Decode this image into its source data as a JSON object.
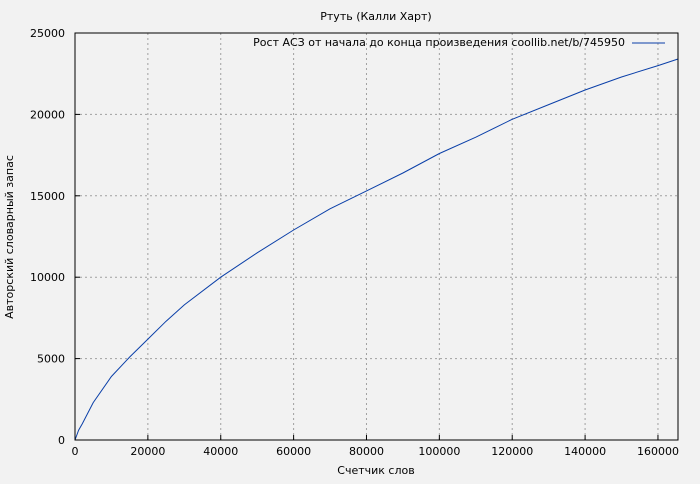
{
  "chart_data": {
    "type": "line",
    "title": "Ртуть (Калли Харт)",
    "xlabel": "Счетчик слов",
    "ylabel": "Авторский словарный запас",
    "xlim": [
      0,
      165500
    ],
    "ylim": [
      0,
      25000
    ],
    "xticks": [
      0,
      20000,
      40000,
      60000,
      80000,
      100000,
      120000,
      140000,
      160000
    ],
    "yticks": [
      0,
      5000,
      10000,
      15000,
      20000,
      25000
    ],
    "grid": true,
    "legend_placement": "top-right",
    "series": [
      {
        "name": "Рост АСЗ от начала до конца произведения coollib.net/b/745950",
        "color": "#0a3fa8",
        "x": [
          0,
          1000,
          2000,
          5000,
          10000,
          15000,
          20000,
          25000,
          30000,
          40000,
          50000,
          60000,
          70000,
          80000,
          90000,
          100000,
          110000,
          120000,
          130000,
          140000,
          150000,
          160000,
          165500
        ],
        "y": [
          0,
          600,
          1000,
          2300,
          3900,
          5100,
          6200,
          7300,
          8300,
          10000,
          11500,
          12900,
          14200,
          15300,
          16400,
          17600,
          18600,
          19700,
          20600,
          21500,
          22300,
          23000,
          23400
        ]
      }
    ]
  }
}
